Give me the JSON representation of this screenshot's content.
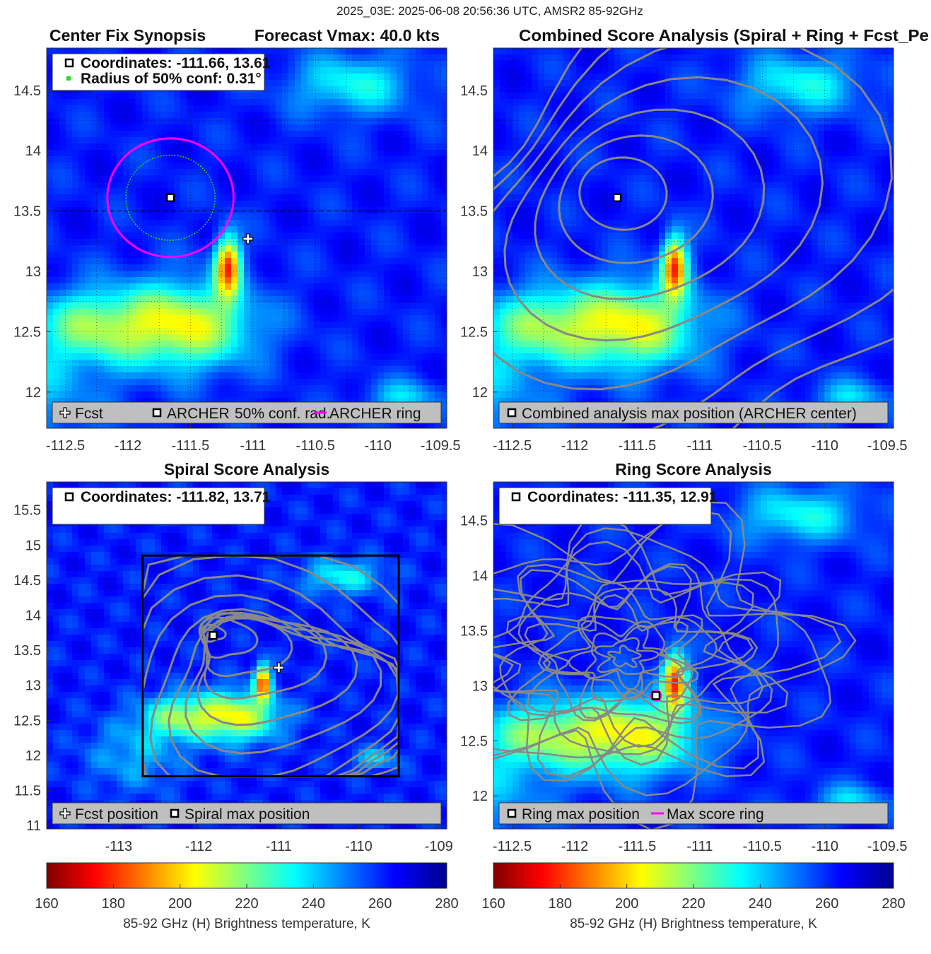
{
  "suptitle": "2025_03E: 2025-06-08 20:56:36 UTC, AMSR2 85-92GHz",
  "colors": {
    "forecast_ring": "#ff00ff",
    "conf_ring": "#22dd22",
    "contour": "#888888",
    "legend_bg": "#bfbfbf",
    "box": "#000000"
  },
  "chart_data": [
    {
      "type": "heatmap",
      "panel": "center-fix-synopsis",
      "title": "Center Fix Synopsis",
      "title_right": "Forecast Vmax: 40.0 kts",
      "xlim": [
        -112.65,
        -109.45
      ],
      "ylim": [
        11.7,
        14.85
      ],
      "xticks": [
        "-112.5",
        "-112",
        "-111.5",
        "-111",
        "-110.5",
        "-110",
        "-109.5"
      ],
      "yticks": [
        "12",
        "12.5",
        "13",
        "13.5",
        "14",
        "14.5"
      ],
      "grid": true,
      "info": [
        "Coordinates: -111.66, 13.61",
        "Radius of 50% conf: 0.31°"
      ],
      "legend": [
        "Fcst",
        "ARCHER",
        "50% conf. rad.",
        "ARCHER ring"
      ],
      "archer_center": [
        -111.66,
        13.61
      ],
      "forecast_position": [
        -111.04,
        13.27
      ],
      "conf_radius_deg": 0.31,
      "ring_radius_deg": 0.5
    },
    {
      "type": "heatmap",
      "panel": "combined-score-analysis",
      "title": "Combined Score Analysis (Spiral + Ring + Fcst_Pe",
      "xlim": [
        -112.65,
        -109.45
      ],
      "ylim": [
        11.7,
        14.85
      ],
      "xticks": [
        "-112.5",
        "-112",
        "-111.5",
        "-111",
        "-110.5",
        "-110",
        "-109.5"
      ],
      "yticks": [
        "12",
        "12.5",
        "13",
        "13.5",
        "14",
        "14.5"
      ],
      "grid": true,
      "legend": [
        "Combined analysis max position (ARCHER center)"
      ],
      "max_position": [
        -111.66,
        13.61
      ]
    },
    {
      "type": "heatmap",
      "panel": "spiral-score-analysis",
      "title": "Spiral Score Analysis",
      "xlim": [
        -113.9,
        -108.9
      ],
      "ylim": [
        10.95,
        15.9
      ],
      "xticks": [
        "-113",
        "-112",
        "-111",
        "-110",
        "-109"
      ],
      "yticks": [
        "11",
        "11.5",
        "12",
        "12.5",
        "13",
        "13.5",
        "14",
        "14.5",
        "15",
        "15.5"
      ],
      "grid": false,
      "info": [
        "Coordinates: -111.82, 13.71"
      ],
      "legend": [
        "Fcst position",
        "Spiral max position"
      ],
      "max_position": [
        -111.82,
        13.71
      ],
      "forecast_position": [
        -111.0,
        13.25
      ],
      "search_box": {
        "x": [
          -112.7,
          -109.5
        ],
        "y": [
          11.7,
          14.85
        ]
      }
    },
    {
      "type": "heatmap",
      "panel": "ring-score-analysis",
      "title": "Ring Score Analysis",
      "xlim": [
        -112.65,
        -109.45
      ],
      "ylim": [
        11.7,
        14.85
      ],
      "xticks": [
        "-112.5",
        "-112",
        "-111.5",
        "-111",
        "-110.5",
        "-110",
        "-109.5"
      ],
      "yticks": [
        "12",
        "12.5",
        "13",
        "13.5",
        "14",
        "14.5"
      ],
      "grid": false,
      "info": [
        "Coordinates: -111.35, 12.91"
      ],
      "legend": [
        "Ring max position",
        "Max score ring"
      ],
      "max_position": [
        -111.35,
        12.91
      ]
    }
  ],
  "colorbar": {
    "label": "85-92 GHz (H) Brightness temperature, K",
    "range": [
      160,
      280
    ],
    "ticks": [
      "160",
      "180",
      "200",
      "220",
      "240",
      "260",
      "280"
    ],
    "colormap": "jet-reversed"
  }
}
